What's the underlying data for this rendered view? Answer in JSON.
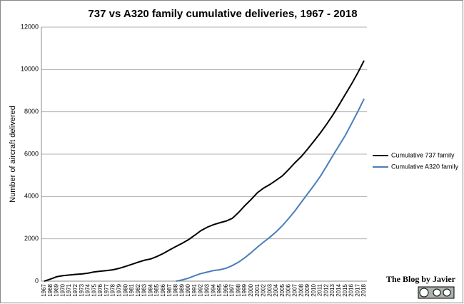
{
  "chart_data": {
    "type": "line",
    "title": "737 vs A320 family cumulative deliveries, 1967 - 2018",
    "y_label": "Number of aircraft delivered",
    "categories": [
      "1967",
      "1968",
      "1969",
      "1970",
      "1971",
      "1972",
      "1973",
      "1974",
      "1975",
      "1976",
      "1977",
      "1978",
      "1979",
      "1980",
      "1981",
      "1982",
      "1983",
      "1984",
      "1985",
      "1986",
      "1987",
      "1988",
      "1989",
      "1990",
      "1991",
      "1992",
      "1993",
      "1994",
      "1995",
      "1996",
      "1997",
      "1998",
      "1999",
      "2000",
      "2001",
      "2002",
      "2003",
      "2004",
      "2005",
      "2006",
      "2007",
      "2008",
      "2009",
      "2010",
      "2011",
      "2012",
      "2013",
      "2014",
      "2015",
      "2016",
      "2017",
      "2018"
    ],
    "series": [
      {
        "name": "Cumulative 737 family",
        "color": "#000000",
        "values": [
          0,
          100,
          210,
          260,
          290,
          320,
          340,
          380,
          440,
          470,
          500,
          540,
          610,
          700,
          800,
          900,
          990,
          1050,
          1170,
          1310,
          1480,
          1640,
          1790,
          1960,
          2170,
          2390,
          2550,
          2670,
          2760,
          2840,
          2970,
          3250,
          3570,
          3860,
          4180,
          4400,
          4570,
          4770,
          4980,
          5280,
          5600,
          5890,
          6240,
          6610,
          6990,
          7400,
          7840,
          8320,
          8820,
          9310,
          9840,
          10420
        ]
      },
      {
        "name": "Cumulative A320 family",
        "color": "#4a7ebb",
        "values": [
          null,
          null,
          null,
          null,
          null,
          null,
          null,
          null,
          null,
          null,
          null,
          null,
          null,
          null,
          null,
          null,
          null,
          null,
          null,
          null,
          null,
          0,
          60,
          140,
          260,
          360,
          430,
          500,
          540,
          610,
          740,
          900,
          1110,
          1350,
          1610,
          1850,
          2080,
          2340,
          2630,
          2970,
          3330,
          3730,
          4130,
          4520,
          4940,
          5420,
          5920,
          6400,
          6880,
          7440,
          8010,
          8610
        ]
      }
    ],
    "ylim": [
      0,
      12000
    ],
    "yticks": [
      0,
      2000,
      4000,
      6000,
      8000,
      10000,
      12000
    ],
    "grid": true,
    "legend": "right",
    "credit": "The Blog by Javier"
  }
}
